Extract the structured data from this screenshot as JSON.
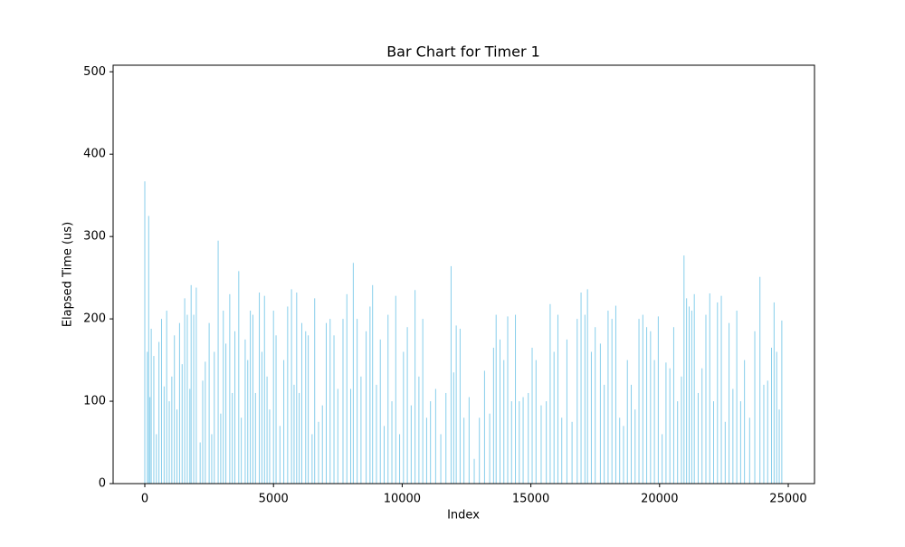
{
  "chart_data": {
    "type": "bar",
    "title": "Bar Chart for Timer 1",
    "x_label": "Index",
    "y_label": "Elapsed Time (us)",
    "color": "#87ceeb",
    "xlim": [
      -1231,
      26020
    ],
    "ylim": [
      0,
      508
    ],
    "xticks": [
      0,
      5000,
      10000,
      15000,
      20000,
      25000
    ],
    "yticks": [
      0,
      100,
      200,
      300,
      400,
      500
    ],
    "x": [
      0,
      100,
      150,
      200,
      250,
      350,
      450,
      550,
      650,
      750,
      850,
      950,
      1050,
      1150,
      1250,
      1350,
      1450,
      1550,
      1650,
      1750,
      1800,
      1900,
      2000,
      2150,
      2250,
      2350,
      2500,
      2600,
      2700,
      2850,
      2950,
      3050,
      3150,
      3300,
      3400,
      3500,
      3650,
      3750,
      3900,
      4000,
      4100,
      4200,
      4300,
      4450,
      4550,
      4650,
      4750,
      4850,
      5000,
      5100,
      5250,
      5400,
      5550,
      5700,
      5800,
      5900,
      6000,
      6100,
      6250,
      6350,
      6500,
      6600,
      6750,
      6900,
      7050,
      7200,
      7350,
      7500,
      7700,
      7850,
      8000,
      8100,
      8250,
      8400,
      8600,
      8750,
      8850,
      9000,
      9150,
      9300,
      9450,
      9600,
      9750,
      9900,
      10050,
      10200,
      10350,
      10500,
      10650,
      10800,
      10950,
      11100,
      11300,
      11500,
      11700,
      11900,
      12000,
      12100,
      12250,
      12400,
      12600,
      12800,
      13000,
      13200,
      13400,
      13550,
      13650,
      13800,
      13950,
      14100,
      14250,
      14400,
      14550,
      14700,
      14900,
      15050,
      15200,
      15400,
      15600,
      15750,
      15900,
      16050,
      16200,
      16400,
      16600,
      16800,
      16950,
      17100,
      17200,
      17350,
      17500,
      17700,
      17850,
      18000,
      18150,
      18300,
      18450,
      18600,
      18750,
      18900,
      19050,
      19200,
      19350,
      19500,
      19650,
      19800,
      19950,
      20100,
      20250,
      20400,
      20550,
      20700,
      20850,
      20950,
      21050,
      21150,
      21250,
      21350,
      21500,
      21650,
      21800,
      21950,
      22100,
      22250,
      22400,
      22550,
      22700,
      22850,
      23000,
      23150,
      23300,
      23500,
      23700,
      23900,
      24050,
      24200,
      24350,
      24450,
      24550,
      24650,
      24750
    ],
    "values": [
      367,
      160,
      325,
      105,
      188,
      155,
      60,
      172,
      200,
      118,
      210,
      100,
      130,
      180,
      90,
      195,
      145,
      225,
      205,
      115,
      241,
      205,
      238,
      50,
      125,
      148,
      195,
      60,
      160,
      295,
      85,
      210,
      170,
      230,
      110,
      185,
      258,
      80,
      175,
      150,
      210,
      205,
      110,
      232,
      160,
      228,
      130,
      90,
      210,
      180,
      70,
      150,
      215,
      236,
      120,
      232,
      110,
      195,
      185,
      180,
      60,
      225,
      75,
      95,
      195,
      200,
      180,
      115,
      200,
      230,
      115,
      268,
      200,
      130,
      185,
      215,
      241,
      120,
      175,
      70,
      205,
      100,
      228,
      60,
      160,
      190,
      95,
      235,
      130,
      200,
      80,
      100,
      115,
      60,
      110,
      264,
      135,
      192,
      188,
      80,
      105,
      30,
      80,
      137,
      85,
      165,
      205,
      175,
      150,
      203,
      100,
      205,
      100,
      105,
      110,
      165,
      150,
      95,
      100,
      218,
      160,
      205,
      80,
      175,
      75,
      200,
      232,
      205,
      236,
      160,
      190,
      170,
      120,
      210,
      200,
      216,
      80,
      70,
      150,
      120,
      90,
      200,
      205,
      190,
      185,
      150,
      203,
      60,
      147,
      140,
      190,
      100,
      130,
      277,
      225,
      215,
      210,
      230,
      110,
      140,
      205,
      231,
      100,
      220,
      228,
      75,
      195,
      115,
      210,
      100,
      150,
      80,
      185,
      251,
      120,
      125,
      165,
      220,
      160,
      90,
      198
    ]
  }
}
